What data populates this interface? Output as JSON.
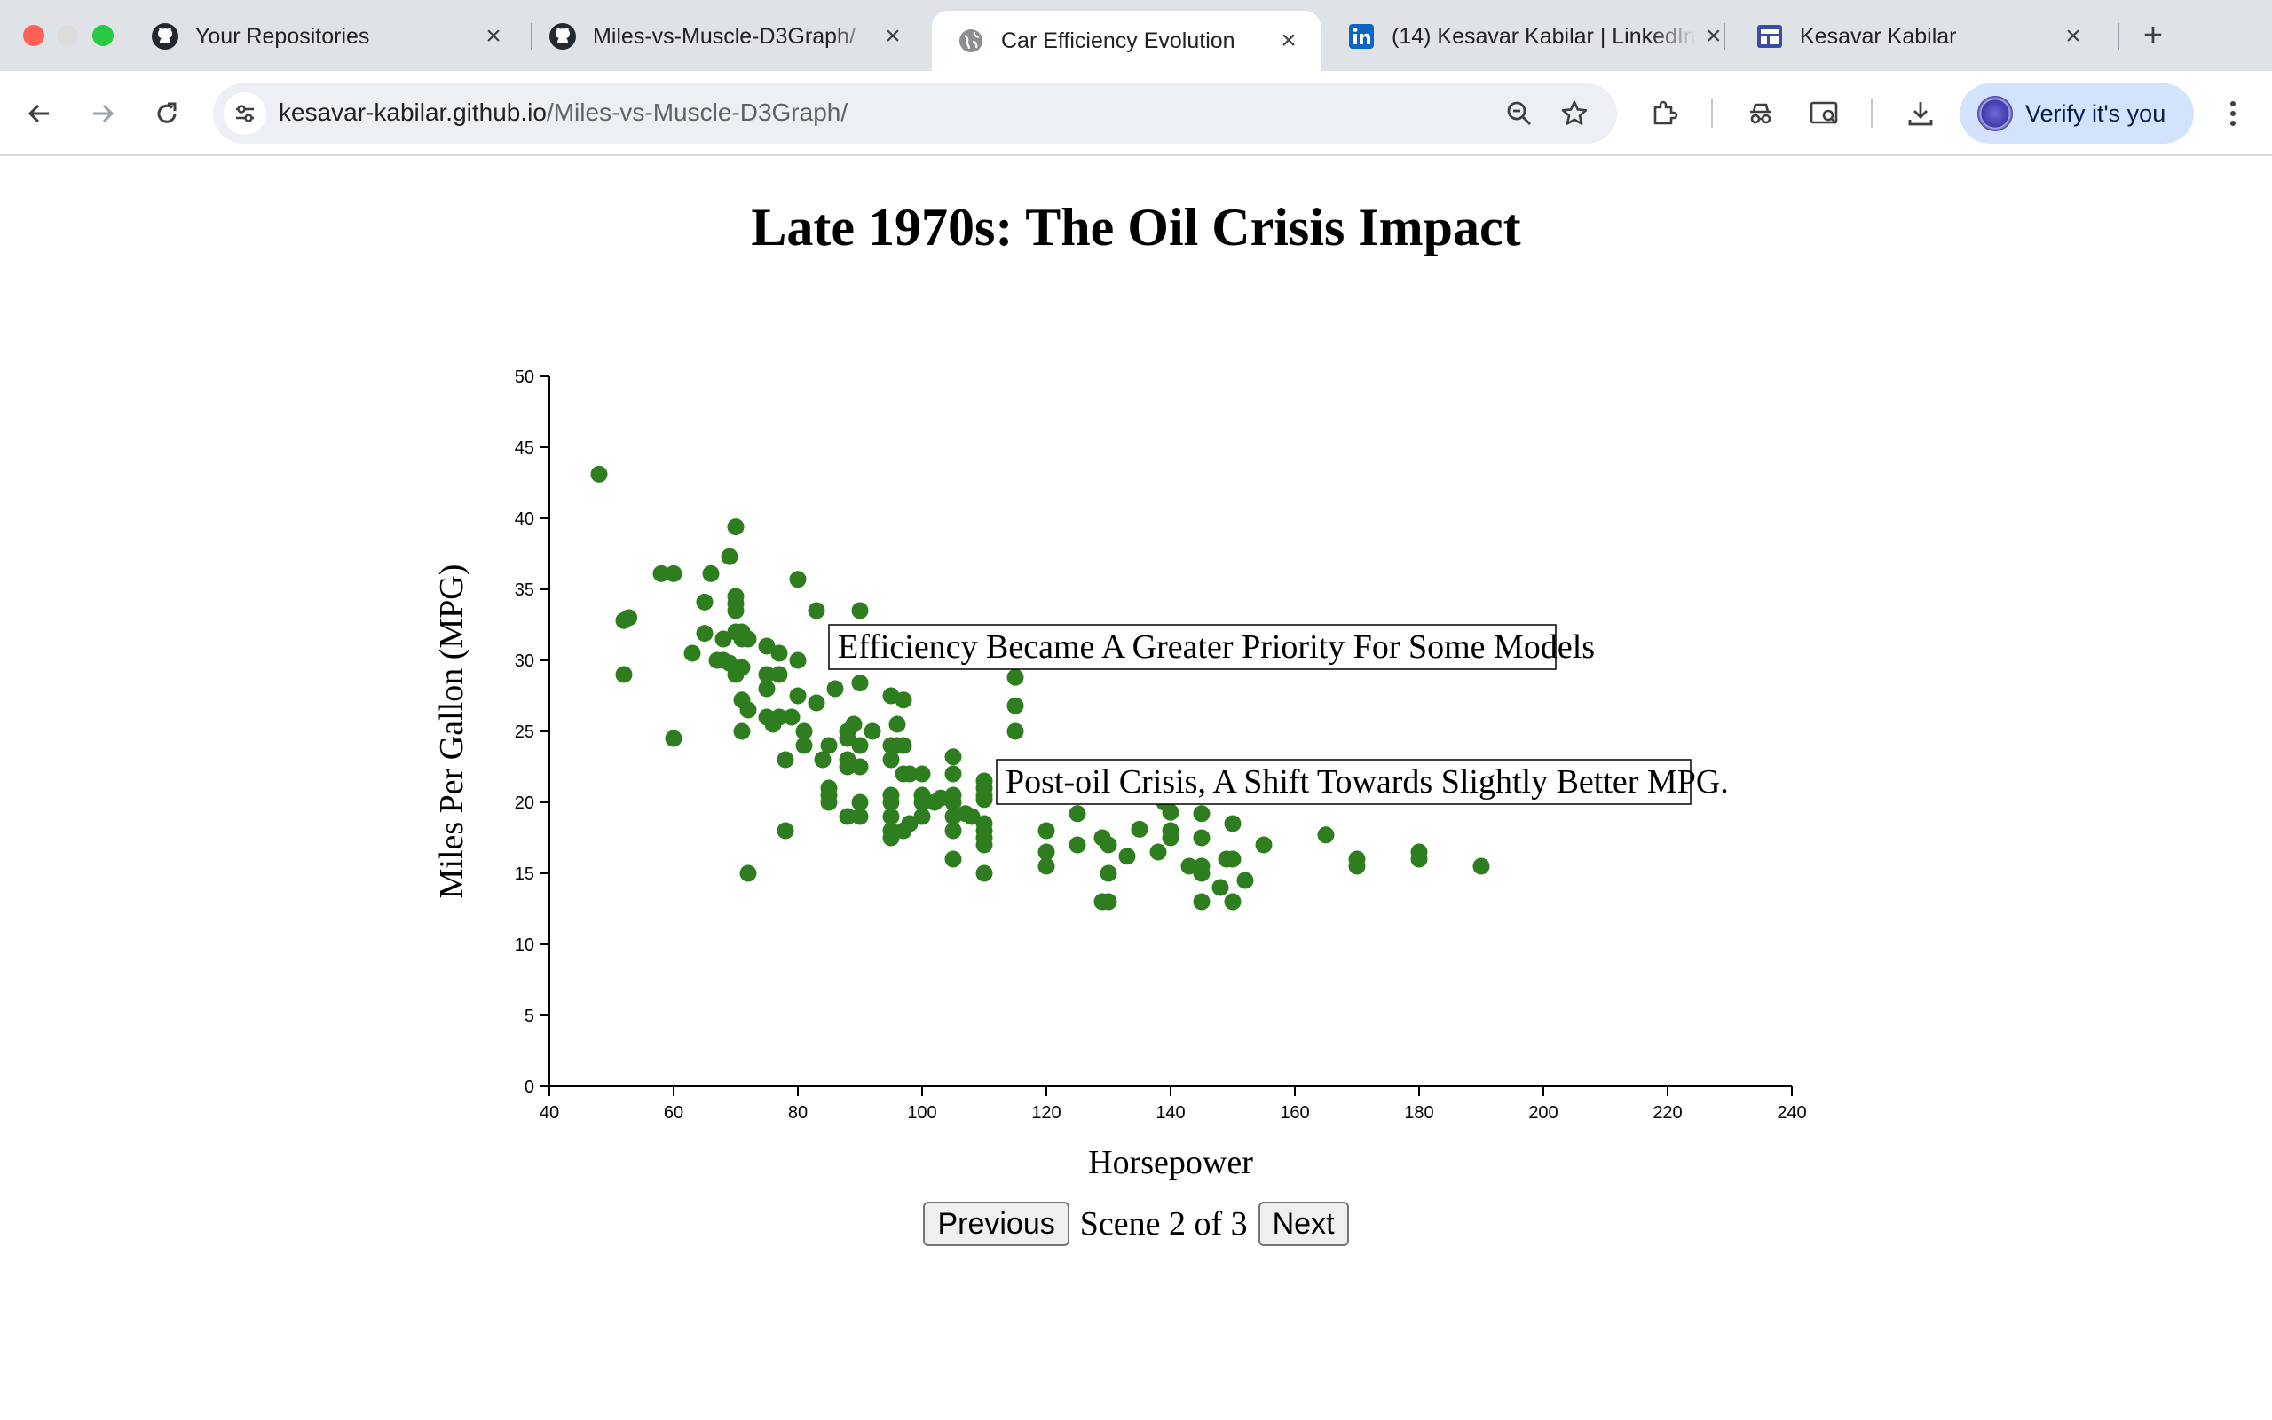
{
  "browser": {
    "tabs": [
      {
        "title": "Your Repositories",
        "icon": "github-icon",
        "active": false
      },
      {
        "title": "Miles-vs-Muscle-D3Graph/",
        "icon": "github-icon",
        "active": false
      },
      {
        "title": "Car Efficiency Evolution",
        "icon": "globe-icon",
        "active": true
      },
      {
        "title": "(14) Kesavar Kabilar | LinkedIn",
        "icon": "linkedin-icon",
        "active": false
      },
      {
        "title": "Kesavar Kabilar",
        "icon": "site-icon",
        "active": false
      }
    ],
    "url_host": "kesavar-kabilar.github.io",
    "url_path": "/Miles-vs-Muscle-D3Graph/",
    "verify_label": "Verify it's you",
    "colors": {
      "tabstrip": "#dfe3e8",
      "omnibox": "#eceff3",
      "verify": "#d3e3fd",
      "linkedin": "#0a66c2"
    }
  },
  "page": {
    "title": "Late 1970s: The Oil Crisis Impact",
    "scene_text": "Scene 2 of 3",
    "prev_label": "Previous",
    "next_label": "Next"
  },
  "chart_data": {
    "type": "scatter",
    "title": "",
    "xlabel": "Horsepower",
    "ylabel": "Miles Per Gallon (MPG)",
    "xlim": [
      40,
      240
    ],
    "ylim": [
      0,
      50
    ],
    "xticks": [
      40,
      60,
      80,
      100,
      120,
      140,
      160,
      180,
      200,
      220,
      240
    ],
    "yticks": [
      0,
      5,
      10,
      15,
      20,
      25,
      30,
      35,
      40,
      45,
      50
    ],
    "grid": false,
    "point_color": "#2e7d1f",
    "annotations": [
      {
        "text": "Efficiency Became A Greater Priority For Some Models",
        "x": 85,
        "y": 31
      },
      {
        "text": "Post-oil Crisis, A Shift Towards Slightly Better MPG.",
        "x": 112,
        "y": 21.5
      }
    ],
    "points": [
      [
        48,
        43.1
      ],
      [
        52,
        32.8
      ],
      [
        52.8,
        33
      ],
      [
        52,
        29
      ],
      [
        58,
        36.1
      ],
      [
        60,
        36.1
      ],
      [
        60,
        24.5
      ],
      [
        63,
        30.5
      ],
      [
        65,
        31.9
      ],
      [
        65,
        34.1
      ],
      [
        66,
        36.1
      ],
      [
        67,
        30
      ],
      [
        68,
        31.5
      ],
      [
        68,
        30
      ],
      [
        69,
        29.8
      ],
      [
        69,
        37.3
      ],
      [
        70,
        39.4
      ],
      [
        70,
        34.5
      ],
      [
        70,
        34
      ],
      [
        70,
        33.5
      ],
      [
        70,
        32
      ],
      [
        70,
        29
      ],
      [
        71,
        32
      ],
      [
        71,
        31.5
      ],
      [
        71,
        29.5
      ],
      [
        71,
        27.2
      ],
      [
        71,
        25
      ],
      [
        72,
        31.5
      ],
      [
        72,
        26.5
      ],
      [
        72,
        15
      ],
      [
        75,
        31
      ],
      [
        75,
        29
      ],
      [
        75,
        28
      ],
      [
        75,
        26
      ],
      [
        76,
        25.5
      ],
      [
        77,
        30.5
      ],
      [
        77,
        29
      ],
      [
        77,
        26
      ],
      [
        78,
        23
      ],
      [
        78,
        18
      ],
      [
        79,
        26
      ],
      [
        80,
        35.7
      ],
      [
        80,
        30
      ],
      [
        80,
        27.5
      ],
      [
        81,
        25
      ],
      [
        81,
        24
      ],
      [
        83,
        33.5
      ],
      [
        83,
        27
      ],
      [
        84,
        23
      ],
      [
        85,
        24
      ],
      [
        85,
        21
      ],
      [
        85,
        20.5
      ],
      [
        85,
        20
      ],
      [
        86,
        28
      ],
      [
        88,
        25
      ],
      [
        88,
        24.5
      ],
      [
        88,
        23
      ],
      [
        88,
        22.5
      ],
      [
        88,
        19
      ],
      [
        89,
        25.5
      ],
      [
        90,
        33.5
      ],
      [
        90,
        28.4
      ],
      [
        90,
        24
      ],
      [
        90,
        22.5
      ],
      [
        90,
        20
      ],
      [
        90,
        19
      ],
      [
        92,
        25
      ],
      [
        95,
        27.5
      ],
      [
        95,
        24
      ],
      [
        95,
        23
      ],
      [
        95,
        20.5
      ],
      [
        95,
        20
      ],
      [
        95,
        19
      ],
      [
        95,
        18
      ],
      [
        95,
        17.5
      ],
      [
        96,
        25.5
      ],
      [
        96,
        24
      ],
      [
        97,
        27.2
      ],
      [
        97,
        24
      ],
      [
        97,
        22
      ],
      [
        97,
        18
      ],
      [
        98,
        22
      ],
      [
        98,
        18.5
      ],
      [
        100,
        22
      ],
      [
        100,
        20.5
      ],
      [
        100,
        20
      ],
      [
        100,
        19
      ],
      [
        102,
        20
      ],
      [
        103,
        20.3
      ],
      [
        105,
        23.2
      ],
      [
        105,
        22
      ],
      [
        105,
        20.5
      ],
      [
        105,
        20
      ],
      [
        105,
        19
      ],
      [
        105,
        18
      ],
      [
        105,
        16
      ],
      [
        107,
        19.2
      ],
      [
        108,
        19
      ],
      [
        110,
        21.5
      ],
      [
        110,
        21
      ],
      [
        110,
        20.5
      ],
      [
        110,
        20.2
      ],
      [
        110,
        18.5
      ],
      [
        110,
        18
      ],
      [
        110,
        17.5
      ],
      [
        110,
        17
      ],
      [
        110,
        15
      ],
      [
        115,
        28.8
      ],
      [
        115,
        26.8
      ],
      [
        115,
        25
      ],
      [
        120,
        18
      ],
      [
        120,
        16.5
      ],
      [
        120,
        15.5
      ],
      [
        125,
        19.2
      ],
      [
        125,
        17
      ],
      [
        129,
        17.5
      ],
      [
        129,
        13
      ],
      [
        130,
        17
      ],
      [
        130,
        15
      ],
      [
        130,
        13
      ],
      [
        133,
        16.2
      ],
      [
        135,
        18.1
      ],
      [
        138,
        16.5
      ],
      [
        139,
        20
      ],
      [
        140,
        19.3
      ],
      [
        140,
        18
      ],
      [
        140,
        17.5
      ],
      [
        143,
        15.5
      ],
      [
        145,
        19.2
      ],
      [
        145,
        17.5
      ],
      [
        145,
        15.5
      ],
      [
        145,
        15
      ],
      [
        145,
        13
      ],
      [
        148,
        14
      ],
      [
        149,
        16
      ],
      [
        150,
        18.5
      ],
      [
        150,
        16
      ],
      [
        150,
        13
      ],
      [
        152,
        14.5
      ],
      [
        155,
        17
      ],
      [
        165,
        17.7
      ],
      [
        170,
        16
      ],
      [
        170,
        15.5
      ],
      [
        180,
        16.5
      ],
      [
        180,
        16
      ],
      [
        190,
        15.5
      ]
    ]
  }
}
